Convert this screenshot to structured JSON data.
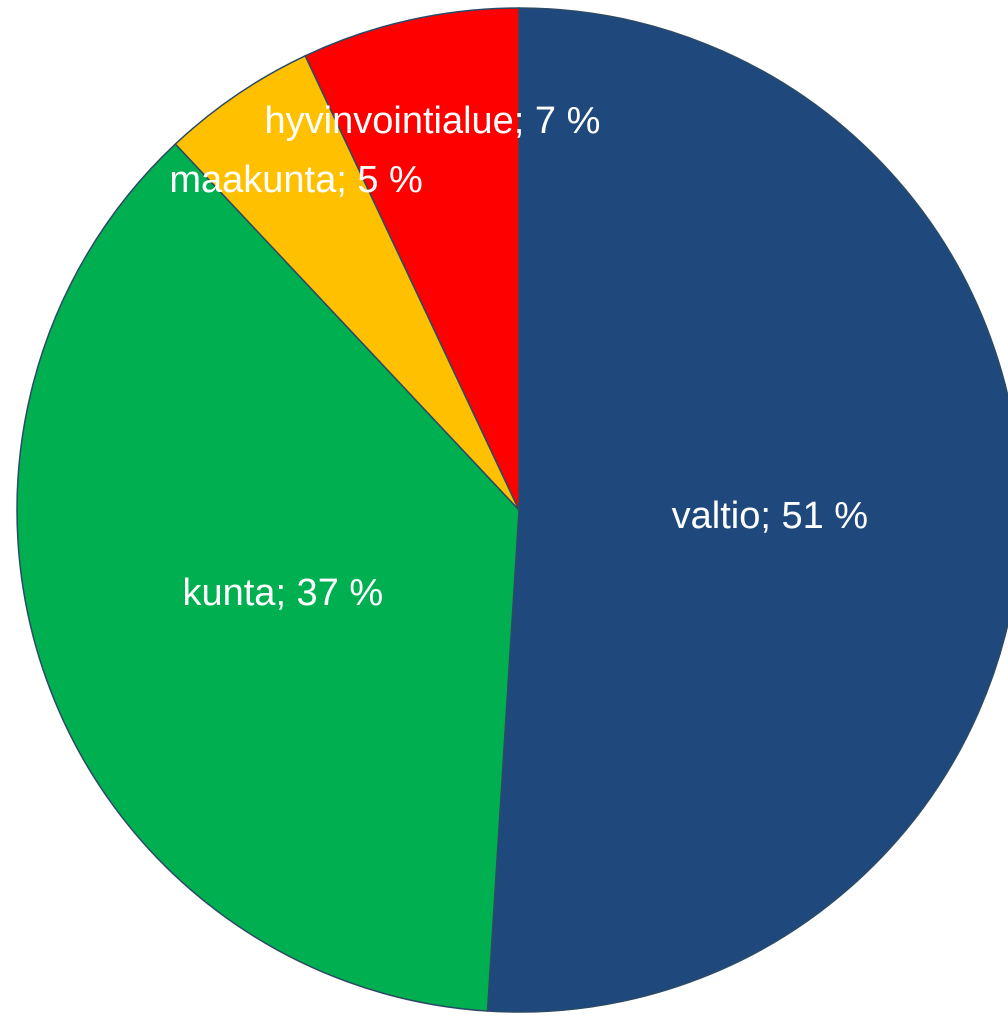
{
  "chart_data": {
    "type": "pie",
    "values": [
      51,
      37,
      5,
      7
    ],
    "value_labels": [
      "valtio; 51 %",
      "kunta; 37 %",
      "maakunta; 5 %",
      "hyvinvointialue; 7 %"
    ],
    "colors": [
      "#1f497d",
      "#00b050",
      "#ffc000",
      "#ff0000"
    ]
  }
}
